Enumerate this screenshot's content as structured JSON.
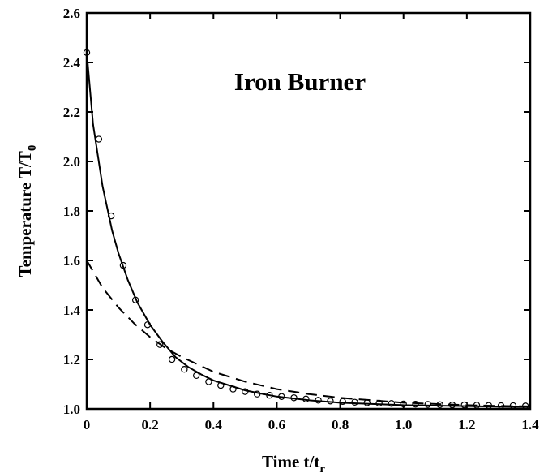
{
  "chart_data": {
    "type": "line",
    "title": "Iron Burner",
    "xlabel": {
      "main": "Time t/t",
      "sub": "r"
    },
    "ylabel": {
      "main": "Temperature  T/T",
      "sub": "0"
    },
    "xlim": [
      0,
      1.4
    ],
    "ylim": [
      1.0,
      2.6
    ],
    "x_ticks": [
      "0",
      "0.2",
      "0.4",
      "0.6",
      "0.8",
      "1.0",
      "1.2",
      "1.4"
    ],
    "y_ticks": [
      "1.0",
      "1.2",
      "1.4",
      "1.6",
      "1.8",
      "2.0",
      "2.2",
      "2.4",
      "2.6"
    ],
    "grid": false,
    "series": [
      {
        "style": "markers-open-circle",
        "x": [
          0.0,
          0.038,
          0.077,
          0.115,
          0.154,
          0.192,
          0.231,
          0.269,
          0.308,
          0.346,
          0.385,
          0.423,
          0.462,
          0.5,
          0.538,
          0.577,
          0.615,
          0.654,
          0.692,
          0.731,
          0.769,
          0.808,
          0.846,
          0.885,
          0.923,
          0.962,
          1.0,
          1.038,
          1.077,
          1.115,
          1.154,
          1.192,
          1.231,
          1.269,
          1.308,
          1.346,
          1.385
        ],
        "y": [
          2.44,
          2.09,
          1.78,
          1.58,
          1.44,
          1.34,
          1.26,
          1.2,
          1.16,
          1.135,
          1.11,
          1.095,
          1.08,
          1.07,
          1.06,
          1.055,
          1.05,
          1.045,
          1.04,
          1.035,
          1.032,
          1.03,
          1.027,
          1.025,
          1.023,
          1.022,
          1.02,
          1.019,
          1.018,
          1.017,
          1.016,
          1.016,
          1.015,
          1.014,
          1.013,
          1.013,
          1.012
        ]
      },
      {
        "style": "solid",
        "x": [
          0.0,
          0.02,
          0.05,
          0.08,
          0.1,
          0.13,
          0.16,
          0.2,
          0.24,
          0.28,
          0.32,
          0.36,
          0.4,
          0.45,
          0.5,
          0.55,
          0.6,
          0.7,
          0.8,
          0.9,
          1.0,
          1.1,
          1.2,
          1.3,
          1.4
        ],
        "y": [
          2.44,
          2.15,
          1.9,
          1.72,
          1.63,
          1.52,
          1.43,
          1.34,
          1.27,
          1.21,
          1.17,
          1.14,
          1.115,
          1.095,
          1.075,
          1.062,
          1.05,
          1.035,
          1.025,
          1.02,
          1.015,
          1.013,
          1.011,
          1.009,
          1.008
        ]
      },
      {
        "style": "dashed",
        "x": [
          0.0,
          0.05,
          0.1,
          0.15,
          0.2,
          0.25,
          0.3,
          0.35,
          0.4,
          0.5,
          0.6,
          0.7,
          0.8,
          0.9,
          1.0,
          1.1,
          1.2,
          1.3,
          1.4
        ],
        "y": [
          1.6,
          1.49,
          1.41,
          1.345,
          1.29,
          1.245,
          1.21,
          1.18,
          1.15,
          1.11,
          1.08,
          1.06,
          1.045,
          1.035,
          1.025,
          1.02,
          1.015,
          1.012,
          1.01
        ]
      }
    ]
  }
}
